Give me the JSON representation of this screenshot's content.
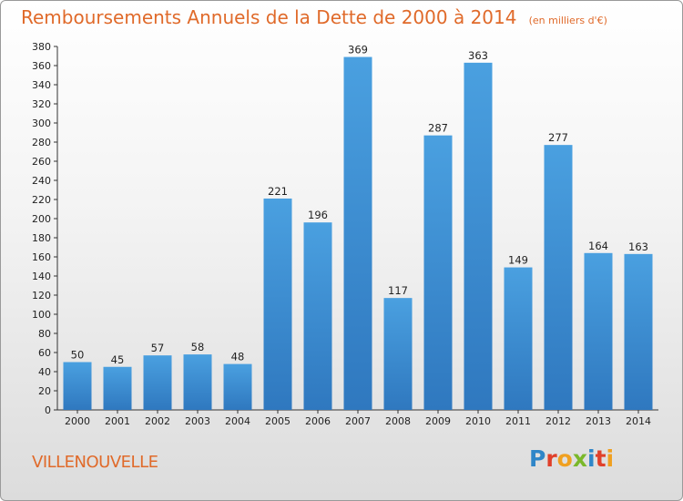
{
  "header": {
    "title": "Remboursements Annuels de la Dette de 2000 à 2014",
    "unit": "(en milliers d'€)"
  },
  "footer": {
    "town": "VILLENOUVELLE",
    "logo_letters": [
      "P",
      "r",
      "o",
      "x",
      "i",
      "t",
      "i"
    ],
    "logo_colors": [
      "#2f86c8",
      "#e0402a",
      "#f0a020",
      "#7ab82a",
      "#2f86c8",
      "#e0402a",
      "#f0a020"
    ]
  },
  "chart_data": {
    "type": "bar",
    "categories": [
      "2000",
      "2001",
      "2002",
      "2003",
      "2004",
      "2005",
      "2006",
      "2007",
      "2008",
      "2009",
      "2010",
      "2011",
      "2012",
      "2013",
      "2014"
    ],
    "values": [
      50,
      45,
      57,
      58,
      48,
      221,
      196,
      369,
      117,
      287,
      363,
      149,
      277,
      164,
      163
    ],
    "data_labels": [
      "50",
      "45",
      "57",
      "58",
      "48",
      "221",
      "196",
      "369",
      "117",
      "287",
      "363",
      "149",
      "277",
      "164",
      "163"
    ],
    "y_ticks": [
      "0",
      "20",
      "40",
      "60",
      "80",
      "100",
      "120",
      "140",
      "160",
      "180",
      "200",
      "220",
      "240",
      "260",
      "280",
      "300",
      "320",
      "340",
      "360",
      "380"
    ],
    "ylim": [
      0,
      380
    ],
    "grid": false,
    "bar_color": "#4aa0e0",
    "bar_color_dark": "#2f78bf",
    "title": "Remboursements Annuels de la Dette de 2000 à 2014",
    "xlabel": "",
    "ylabel": ""
  }
}
